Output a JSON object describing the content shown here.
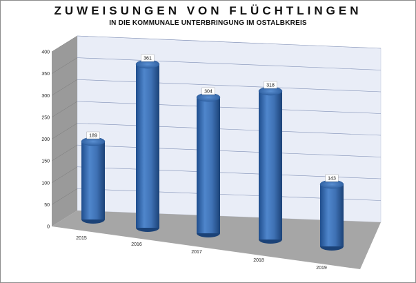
{
  "chart_data": {
    "type": "bar",
    "title": "ZUWEISUNGEN VON FLÜCHTLINGEN",
    "subtitle": "IN DIE KOMMUNALE UNTERBRINGUNG IM OSTALBKREIS",
    "categories": [
      "2015",
      "2016",
      "2017",
      "2018",
      "2019"
    ],
    "values": [
      189,
      361,
      304,
      318,
      143
    ],
    "data_labels": [
      "189",
      "361",
      "304",
      "318",
      "143"
    ],
    "ylim": [
      0,
      400
    ],
    "yticks": [
      "0",
      "50",
      "100",
      "150",
      "200",
      "250",
      "300",
      "350",
      "400"
    ],
    "grid": true,
    "legend": "none",
    "colors": {
      "bar": "#3f72b5",
      "bar_dark": "#1f4d8c",
      "bar_light": "#7aa6dd",
      "wall": "#e9edf7",
      "side_wall": "#9a9a9a",
      "floor": "#a6a6a6"
    }
  }
}
